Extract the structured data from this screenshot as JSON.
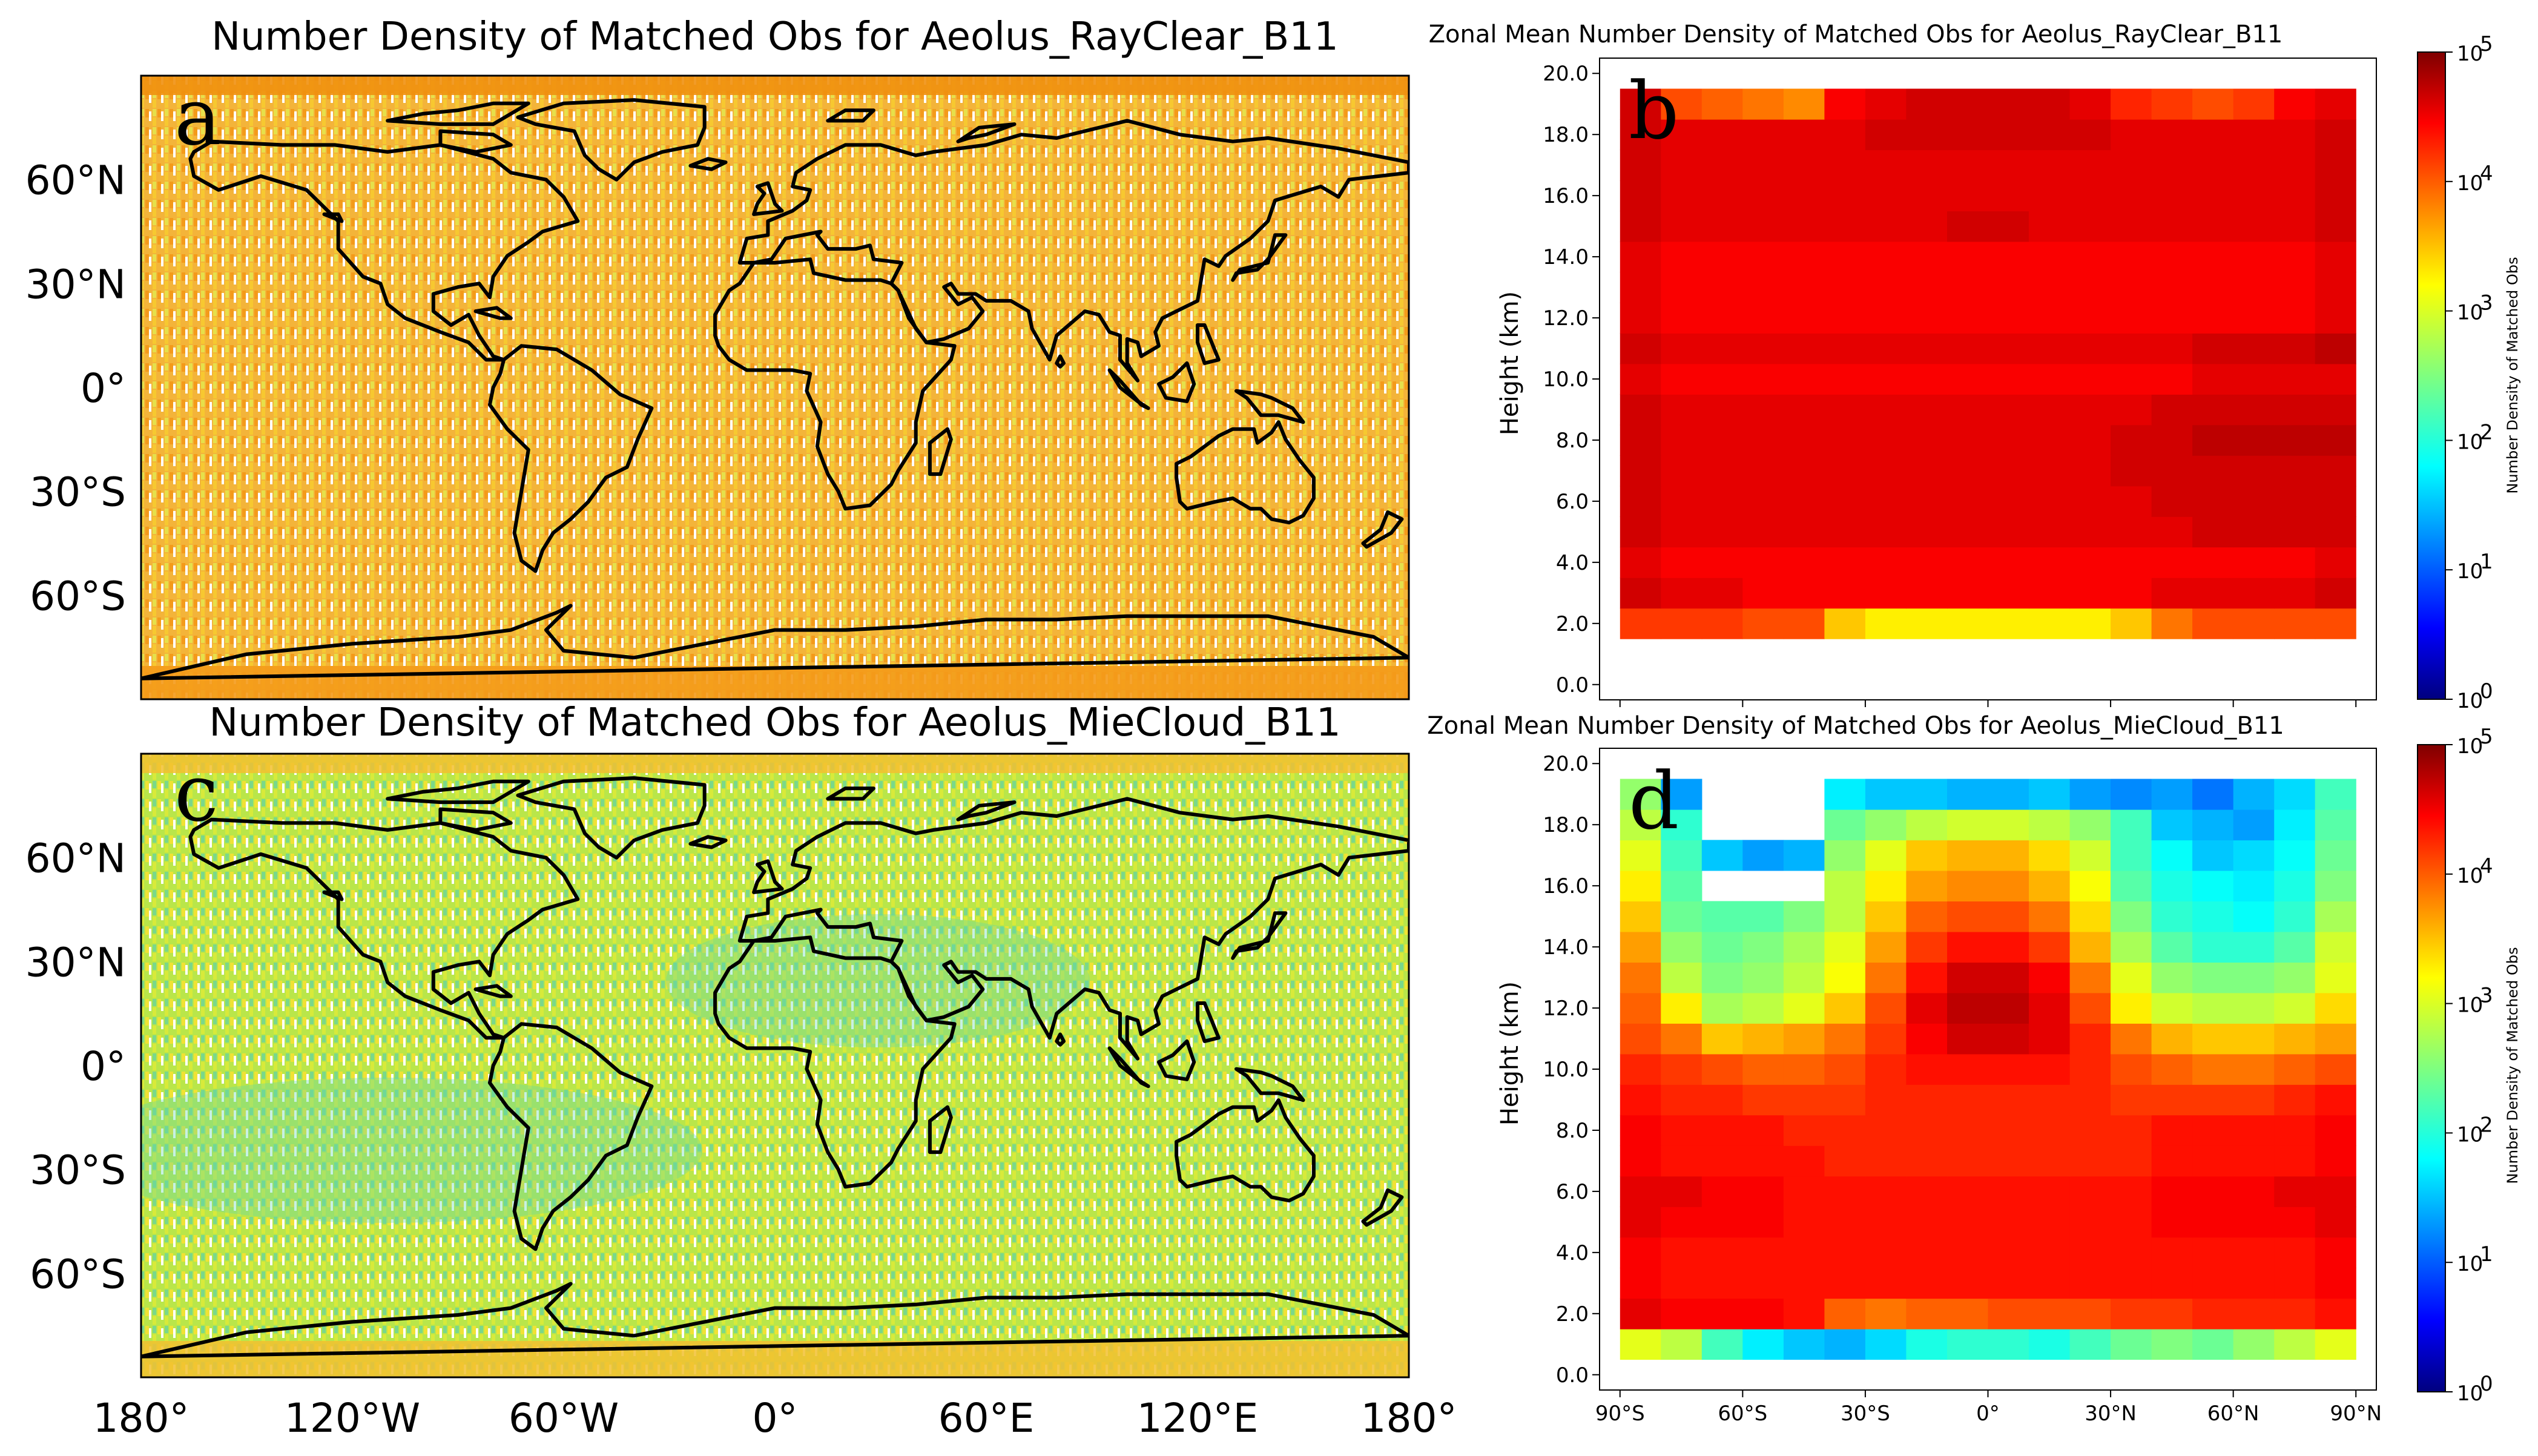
{
  "chart_data": [
    {
      "panel": "a",
      "type": "heatmap",
      "title": "Number Density of Matched Obs for Aeolus_RayClear_B11",
      "xlabel": "",
      "ylabel": "",
      "x_ticks": [],
      "y_ticks": [
        "60°N",
        "30°N",
        "0°",
        "30°S",
        "60°S"
      ],
      "xlim": [
        -180,
        180
      ],
      "ylim": [
        -90,
        90
      ],
      "description_value_range": "mostly 10^3 to 10^4 (orange/yellow)",
      "palette": [
        "#f2a51c",
        "#f7c21d",
        "#e7e03a",
        "#f08a12"
      ]
    },
    {
      "panel": "b",
      "type": "heatmap",
      "title": "Zonal Mean Number Density of Matched Obs for Aeolus_RayClear_B11",
      "xlabel": "",
      "ylabel": "Height (km)",
      "x_ticks": [],
      "y_ticks": [
        "0.0",
        "2.0",
        "4.0",
        "6.0",
        "8.0",
        "10.0",
        "12.0",
        "14.0",
        "16.0",
        "18.0",
        "20.0"
      ],
      "ylim": [
        0,
        20.5
      ],
      "xlim": [
        -90,
        90
      ],
      "colorbar_label": "Number Density of Matched Obs",
      "colorbar_ticks": [
        "10",
        "10",
        "10",
        "10",
        "10",
        "10"
      ],
      "colorbar_exponents": [
        "0",
        "1",
        "2",
        "3",
        "4",
        "5"
      ],
      "levels_km": [
        2,
        3,
        4,
        5,
        6,
        7,
        8,
        9,
        10,
        11,
        12,
        13,
        14,
        15,
        16,
        17,
        18,
        19
      ],
      "lat_bins": [
        -85,
        -75,
        -65,
        -55,
        -45,
        -35,
        -25,
        -15,
        -5,
        5,
        15,
        25,
        35,
        45,
        55,
        65,
        75,
        85
      ],
      "log10_values": [
        [
          4.1,
          4.1,
          4.1,
          4.0,
          4.0,
          3.4,
          3.2,
          3.2,
          3.2,
          3.2,
          3.2,
          3.2,
          3.4,
          3.8,
          4.0,
          4.0,
          4.0,
          4.0
        ],
        [
          4.6,
          4.5,
          4.5,
          4.4,
          4.4,
          4.4,
          4.4,
          4.4,
          4.4,
          4.4,
          4.4,
          4.4,
          4.4,
          4.5,
          4.5,
          4.5,
          4.5,
          4.6
        ],
        [
          4.5,
          4.4,
          4.4,
          4.4,
          4.4,
          4.4,
          4.4,
          4.4,
          4.4,
          4.4,
          4.4,
          4.4,
          4.4,
          4.4,
          4.4,
          4.4,
          4.4,
          4.5
        ],
        [
          4.6,
          4.5,
          4.5,
          4.5,
          4.5,
          4.5,
          4.5,
          4.5,
          4.5,
          4.5,
          4.5,
          4.5,
          4.5,
          4.5,
          4.6,
          4.6,
          4.6,
          4.6
        ],
        [
          4.6,
          4.5,
          4.5,
          4.5,
          4.5,
          4.5,
          4.5,
          4.5,
          4.5,
          4.5,
          4.5,
          4.5,
          4.5,
          4.6,
          4.6,
          4.6,
          4.6,
          4.6
        ],
        [
          4.6,
          4.5,
          4.5,
          4.5,
          4.5,
          4.5,
          4.5,
          4.5,
          4.5,
          4.5,
          4.5,
          4.5,
          4.6,
          4.6,
          4.6,
          4.6,
          4.6,
          4.6
        ],
        [
          4.6,
          4.5,
          4.5,
          4.5,
          4.5,
          4.5,
          4.5,
          4.5,
          4.5,
          4.5,
          4.5,
          4.5,
          4.6,
          4.6,
          4.7,
          4.7,
          4.7,
          4.7
        ],
        [
          4.6,
          4.5,
          4.5,
          4.5,
          4.5,
          4.5,
          4.5,
          4.5,
          4.5,
          4.5,
          4.5,
          4.5,
          4.5,
          4.6,
          4.6,
          4.6,
          4.6,
          4.6
        ],
        [
          4.5,
          4.4,
          4.4,
          4.4,
          4.4,
          4.4,
          4.4,
          4.4,
          4.4,
          4.4,
          4.4,
          4.4,
          4.4,
          4.4,
          4.5,
          4.5,
          4.5,
          4.5
        ],
        [
          4.6,
          4.5,
          4.5,
          4.5,
          4.5,
          4.5,
          4.5,
          4.5,
          4.5,
          4.5,
          4.5,
          4.5,
          4.5,
          4.5,
          4.6,
          4.6,
          4.6,
          4.7
        ],
        [
          4.5,
          4.4,
          4.4,
          4.4,
          4.4,
          4.4,
          4.4,
          4.4,
          4.4,
          4.4,
          4.4,
          4.4,
          4.4,
          4.4,
          4.4,
          4.4,
          4.4,
          4.5
        ],
        [
          4.5,
          4.4,
          4.4,
          4.4,
          4.4,
          4.4,
          4.4,
          4.4,
          4.4,
          4.4,
          4.4,
          4.4,
          4.4,
          4.4,
          4.4,
          4.4,
          4.4,
          4.5
        ],
        [
          4.5,
          4.4,
          4.4,
          4.4,
          4.4,
          4.4,
          4.4,
          4.4,
          4.4,
          4.4,
          4.4,
          4.4,
          4.4,
          4.4,
          4.4,
          4.4,
          4.4,
          4.5
        ],
        [
          4.6,
          4.5,
          4.5,
          4.5,
          4.5,
          4.5,
          4.5,
          4.5,
          4.6,
          4.6,
          4.5,
          4.5,
          4.5,
          4.5,
          4.5,
          4.5,
          4.5,
          4.6
        ],
        [
          4.6,
          4.5,
          4.5,
          4.5,
          4.5,
          4.5,
          4.5,
          4.5,
          4.5,
          4.5,
          4.5,
          4.5,
          4.5,
          4.5,
          4.5,
          4.5,
          4.5,
          4.6
        ],
        [
          4.6,
          4.5,
          4.5,
          4.5,
          4.5,
          4.5,
          4.5,
          4.5,
          4.5,
          4.5,
          4.5,
          4.5,
          4.5,
          4.5,
          4.5,
          4.5,
          4.5,
          4.6
        ],
        [
          4.6,
          4.5,
          4.5,
          4.5,
          4.5,
          4.5,
          4.6,
          4.6,
          4.6,
          4.6,
          4.6,
          4.6,
          4.5,
          4.5,
          4.5,
          4.5,
          4.5,
          4.6
        ],
        [
          4.6,
          4.0,
          3.9,
          3.8,
          3.7,
          4.4,
          4.5,
          4.6,
          4.6,
          4.6,
          4.6,
          4.5,
          4.2,
          4.1,
          4.0,
          4.1,
          4.4,
          4.5
        ]
      ]
    },
    {
      "panel": "c",
      "type": "heatmap",
      "title": "Number Density of Matched Obs for Aeolus_MieCloud_B11",
      "xlabel": "",
      "ylabel": "",
      "x_ticks": [
        "180°",
        "120°W",
        "60°W",
        "0°",
        "60°E",
        "120°E",
        "180°"
      ],
      "y_ticks": [
        "60°N",
        "30°N",
        "0°",
        "30°S",
        "60°S"
      ],
      "xlim": [
        -180,
        180
      ],
      "ylim": [
        -90,
        90
      ],
      "description_value_range": "mostly 10^2 to 10^3 (green/yellow)",
      "palette": [
        "#c8e83a",
        "#9be04a",
        "#f0e030",
        "#50d8a8"
      ]
    },
    {
      "panel": "d",
      "type": "heatmap",
      "title": "Zonal Mean Number Density of Matched Obs for Aeolus_MieCloud_B11",
      "xlabel": "",
      "ylabel": "Height (km)",
      "x_ticks": [
        "90°S",
        "60°S",
        "30°S",
        "0°",
        "30°N",
        "60°N",
        "90°N"
      ],
      "y_ticks": [
        "0.0",
        "2.0",
        "4.0",
        "6.0",
        "8.0",
        "10.0",
        "12.0",
        "14.0",
        "16.0",
        "18.0",
        "20.0"
      ],
      "ylim": [
        0,
        20.5
      ],
      "xlim": [
        -90,
        90
      ],
      "colorbar_label": "Number Density of Matched Obs",
      "colorbar_ticks": [
        "10",
        "10",
        "10",
        "10",
        "10",
        "10"
      ],
      "colorbar_exponents": [
        "0",
        "1",
        "2",
        "3",
        "4",
        "5"
      ],
      "levels_km": [
        1,
        2,
        3,
        4,
        5,
        6,
        7,
        8,
        9,
        10,
        11,
        12,
        13,
        14,
        15,
        16,
        17,
        18,
        19
      ],
      "lat_bins": [
        -85,
        -75,
        -65,
        -55,
        -45,
        -35,
        -25,
        -15,
        -5,
        5,
        15,
        25,
        35,
        45,
        55,
        65,
        75,
        85
      ],
      "log10_values": [
        [
          3.0,
          2.8,
          2.2,
          1.8,
          1.6,
          1.5,
          1.7,
          2.0,
          2.1,
          2.1,
          2.0,
          2.2,
          2.4,
          2.5,
          2.4,
          2.6,
          2.8,
          3.0
        ],
        [
          4.5,
          4.4,
          4.4,
          4.4,
          4.3,
          3.9,
          3.8,
          3.9,
          3.9,
          4.0,
          4.0,
          4.0,
          4.1,
          4.1,
          4.2,
          4.2,
          4.2,
          4.3
        ],
        [
          4.4,
          4.3,
          4.3,
          4.3,
          4.3,
          4.3,
          4.3,
          4.3,
          4.3,
          4.3,
          4.3,
          4.3,
          4.3,
          4.3,
          4.3,
          4.3,
          4.3,
          4.4
        ],
        [
          4.4,
          4.3,
          4.3,
          4.3,
          4.3,
          4.3,
          4.3,
          4.3,
          4.3,
          4.3,
          4.3,
          4.3,
          4.3,
          4.3,
          4.3,
          4.3,
          4.3,
          4.4
        ],
        [
          4.5,
          4.4,
          4.4,
          4.4,
          4.3,
          4.3,
          4.3,
          4.3,
          4.3,
          4.3,
          4.3,
          4.3,
          4.3,
          4.4,
          4.4,
          4.4,
          4.4,
          4.5
        ],
        [
          4.5,
          4.5,
          4.4,
          4.4,
          4.3,
          4.3,
          4.3,
          4.3,
          4.3,
          4.3,
          4.3,
          4.3,
          4.3,
          4.4,
          4.4,
          4.4,
          4.5,
          4.5
        ],
        [
          4.4,
          4.3,
          4.3,
          4.3,
          4.3,
          4.2,
          4.2,
          4.2,
          4.2,
          4.2,
          4.2,
          4.2,
          4.2,
          4.3,
          4.3,
          4.3,
          4.3,
          4.4
        ],
        [
          4.4,
          4.3,
          4.3,
          4.3,
          4.2,
          4.2,
          4.2,
          4.2,
          4.2,
          4.2,
          4.2,
          4.2,
          4.2,
          4.3,
          4.3,
          4.3,
          4.3,
          4.4
        ],
        [
          4.3,
          4.2,
          4.2,
          4.1,
          4.1,
          4.1,
          4.2,
          4.2,
          4.2,
          4.2,
          4.2,
          4.2,
          4.1,
          4.1,
          4.1,
          4.1,
          4.2,
          4.3
        ],
        [
          4.2,
          4.1,
          4.0,
          3.9,
          3.9,
          4.0,
          4.2,
          4.3,
          4.3,
          4.3,
          4.3,
          4.2,
          4.0,
          3.9,
          3.8,
          3.8,
          3.9,
          4.0
        ],
        [
          4.0,
          3.8,
          3.4,
          3.5,
          3.6,
          3.8,
          4.1,
          4.4,
          4.6,
          4.6,
          4.5,
          4.2,
          3.8,
          3.5,
          3.4,
          3.4,
          3.5,
          3.6
        ],
        [
          3.9,
          3.2,
          2.7,
          2.8,
          3.0,
          3.4,
          4.0,
          4.5,
          4.7,
          4.7,
          4.5,
          4.0,
          3.2,
          2.9,
          2.8,
          2.8,
          2.9,
          3.3
        ],
        [
          3.8,
          2.8,
          2.5,
          2.6,
          2.8,
          3.1,
          3.8,
          4.3,
          4.6,
          4.6,
          4.4,
          3.8,
          3.0,
          2.6,
          2.5,
          2.5,
          2.6,
          3.0
        ],
        [
          3.6,
          2.6,
          2.4,
          2.5,
          2.7,
          3.0,
          3.6,
          4.1,
          4.3,
          4.3,
          4.1,
          3.5,
          2.7,
          2.3,
          2.1,
          2.1,
          2.3,
          2.9
        ],
        [
          3.4,
          2.4,
          2.3,
          2.3,
          2.5,
          2.8,
          3.4,
          3.9,
          4.0,
          4.0,
          3.8,
          3.3,
          2.5,
          2.1,
          2.0,
          1.9,
          2.1,
          2.7
        ],
        [
          3.2,
          2.3,
          null,
          null,
          null,
          2.8,
          3.2,
          3.6,
          3.7,
          3.7,
          3.5,
          3.1,
          2.3,
          2.0,
          1.9,
          1.8,
          2.0,
          2.5
        ],
        [
          3.0,
          2.2,
          1.6,
          1.4,
          1.5,
          2.6,
          3.0,
          3.4,
          3.5,
          3.5,
          3.3,
          2.9,
          2.2,
          1.9,
          1.6,
          1.7,
          1.9,
          2.4
        ],
        [
          2.8,
          2.1,
          null,
          null,
          null,
          2.4,
          2.6,
          2.8,
          2.9,
          2.9,
          2.8,
          2.6,
          2.2,
          1.6,
          1.5,
          1.4,
          1.8,
          2.3
        ],
        [
          2.6,
          1.4,
          null,
          null,
          null,
          1.8,
          1.6,
          1.6,
          1.5,
          1.5,
          1.6,
          1.4,
          1.3,
          1.4,
          1.2,
          1.5,
          1.7,
          2.2
        ]
      ]
    }
  ],
  "panel_letters": {
    "a": "a",
    "b": "b",
    "c": "c",
    "d": "d"
  }
}
